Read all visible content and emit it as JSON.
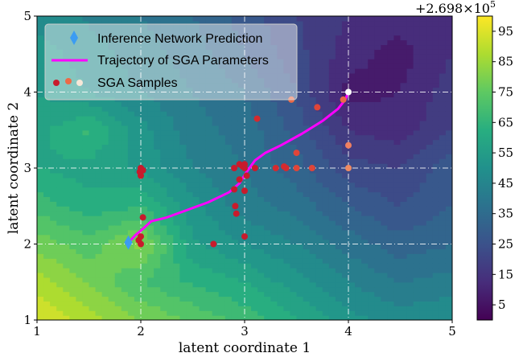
{
  "chart_data": {
    "type": "contour",
    "xlabel": "latent coordinate 1",
    "ylabel": "latent coordinate 2",
    "xlim": [
      1,
      5
    ],
    "ylim": [
      1,
      5
    ],
    "x_ticks": [
      "1",
      "2",
      "3",
      "4",
      "5"
    ],
    "y_ticks": [
      "1",
      "2",
      "3",
      "4",
      "5"
    ],
    "grid": true,
    "colorbar": {
      "offset_label": "+2.698×10",
      "offset_exponent": "5",
      "ticks": [
        "5",
        "15",
        "25",
        "35",
        "45",
        "55",
        "65",
        "75",
        "85",
        "95"
      ],
      "range": [
        0,
        100
      ],
      "colormap": "viridis"
    },
    "contour_grid": {
      "x": [
        1,
        1.5,
        2,
        2.5,
        3,
        3.5,
        4,
        4.5,
        5
      ],
      "y": [
        1,
        1.5,
        2,
        2.5,
        3,
        3.5,
        4,
        4.5,
        5
      ],
      "z": [
        [
          95,
          88,
          80,
          74,
          68,
          60,
          52,
          48,
          50
        ],
        [
          88,
          80,
          70,
          64,
          60,
          52,
          45,
          40,
          42
        ],
        [
          78,
          72,
          82,
          56,
          50,
          45,
          38,
          32,
          35
        ],
        [
          68,
          62,
          65,
          52,
          42,
          38,
          30,
          25,
          30
        ],
        [
          60,
          58,
          54,
          45,
          40,
          32,
          22,
          20,
          28
        ],
        [
          58,
          66,
          52,
          42,
          38,
          28,
          15,
          12,
          20
        ],
        [
          55,
          50,
          45,
          40,
          35,
          25,
          8,
          10,
          18
        ],
        [
          52,
          48,
          42,
          38,
          30,
          22,
          12,
          8,
          15
        ],
        [
          48,
          44,
          40,
          35,
          28,
          20,
          15,
          12,
          15
        ]
      ]
    },
    "inference_prediction": {
      "x": 1.88,
      "y": 2.02
    },
    "trajectory": {
      "x": [
        1.88,
        1.95,
        2.02,
        2.1,
        2.25,
        2.45,
        2.65,
        2.85,
        2.95,
        3.02,
        3.1,
        3.2,
        3.35,
        3.55,
        3.75,
        3.9,
        3.97,
        4.0
      ],
      "y": [
        2.02,
        2.12,
        2.2,
        2.3,
        2.35,
        2.45,
        2.55,
        2.68,
        2.8,
        2.95,
        3.1,
        3.2,
        3.3,
        3.45,
        3.62,
        3.78,
        3.9,
        4.0
      ]
    },
    "sga_samples": {
      "x": [
        2.0,
        1.98,
        2.0,
        2.02,
        2.0,
        1.99,
        2.0,
        2.02,
        2.7,
        3.0,
        2.92,
        2.91,
        2.9,
        2.95,
        3.0,
        3.02,
        3.0,
        2.98,
        2.9,
        2.95,
        3.0,
        3.1,
        3.12,
        3.3,
        3.38,
        3.4,
        3.5,
        3.5,
        3.65,
        3.7,
        3.45,
        3.95,
        4.0,
        4.0,
        4.0
      ],
      "y": [
        2.0,
        2.05,
        2.1,
        2.35,
        2.9,
        2.95,
        3.0,
        2.97,
        2.0,
        2.1,
        2.4,
        2.5,
        2.72,
        2.85,
        2.7,
        2.9,
        3.0,
        3.02,
        3.0,
        3.05,
        3.05,
        3.0,
        3.65,
        3.0,
        3.02,
        3.0,
        3.0,
        3.2,
        3.0,
        3.8,
        3.9,
        3.9,
        3.3,
        3.0,
        4.0
      ],
      "colors": [
        "#c81b2c",
        "#c81b2c",
        "#c81b2c",
        "#c81b2c",
        "#c81b2c",
        "#c81b2c",
        "#c81b2c",
        "#c81b2c",
        "#c81b2c",
        "#c81b2c",
        "#c81b2c",
        "#c81b2c",
        "#c81b2c",
        "#c81b2c",
        "#c81b2c",
        "#c81b2c",
        "#c81b2c",
        "#c81b2c",
        "#c81b2c",
        "#c81b2c",
        "#c81b2c",
        "#c81b2c",
        "#d42a2f",
        "#d42a2f",
        "#d42a2f",
        "#d42a2f",
        "#e04538",
        "#e04538",
        "#e04538",
        "#e04538",
        "#ec6a47",
        "#ec6a47",
        "#f08060",
        "#ee8a62",
        "#ffffff"
      ]
    },
    "legend": {
      "placement": "top-left",
      "entries": [
        {
          "label": "Inference Network Prediction",
          "marker": "diamond",
          "color": "#3b9cf2"
        },
        {
          "label": "Trajectory of SGA Parameters",
          "marker": "line",
          "color": "#ff00ff"
        },
        {
          "label": "SGA Samples",
          "marker": "dots",
          "colors": [
            "#c81b2c",
            "#ec6a47",
            "#f6e7d8"
          ]
        }
      ]
    }
  }
}
